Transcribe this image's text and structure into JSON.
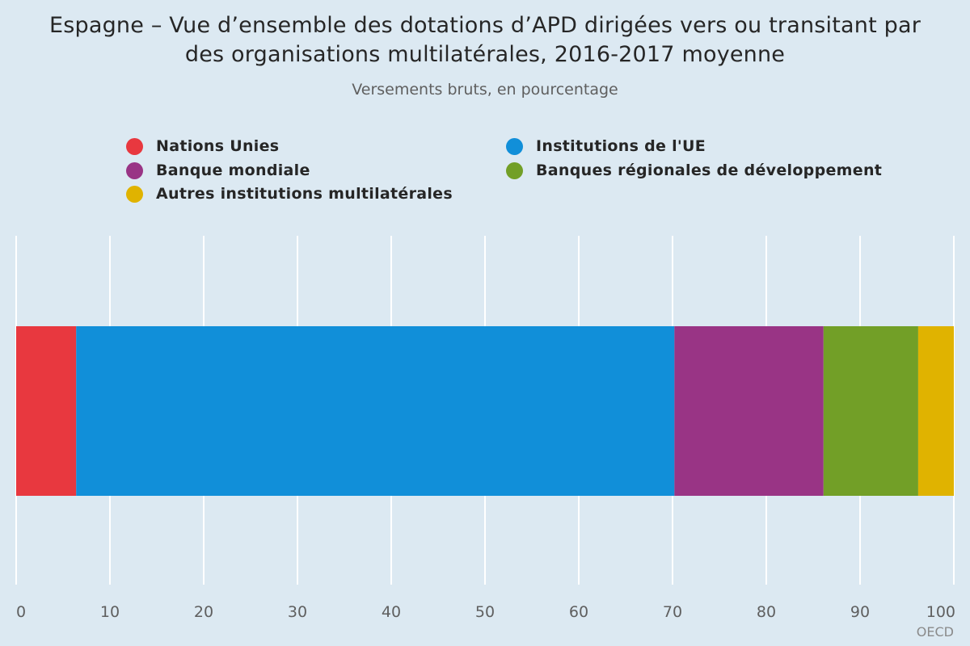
{
  "title_line1": "Espagne – Vue d’ensemble des dotations d’APD dirigées vers ou transitant par",
  "title_line2": "des organisations multilatérales, 2016-2017 moyenne",
  "subtitle": "Versements bruts, en pourcentage",
  "source": "OECD",
  "chart_data": {
    "type": "bar",
    "orientation": "horizontal",
    "stacked": true,
    "title": "Espagne – Vue d’ensemble des dotations d’APD dirigées vers ou transitant par des organisations multilatérales, 2016-2017 moyenne",
    "subtitle": "Versements bruts, en pourcentage",
    "xlim": [
      0,
      100
    ],
    "x_ticks": [
      0,
      10,
      20,
      30,
      40,
      50,
      60,
      70,
      80,
      90,
      100
    ],
    "grid": true,
    "legend_position": "top",
    "series": [
      {
        "name": "Nations Unies",
        "value": 6.4,
        "color": "#e8383f"
      },
      {
        "name": "Institutions de l'UE",
        "value": 63.8,
        "color": "#118fd9"
      },
      {
        "name": "Banque mondiale",
        "value": 15.9,
        "color": "#993485"
      },
      {
        "name": "Banques régionales de développement",
        "value": 10.1,
        "color": "#729f27"
      },
      {
        "name": "Autres institutions multilatérales",
        "value": 3.8,
        "color": "#e0b300"
      }
    ]
  }
}
